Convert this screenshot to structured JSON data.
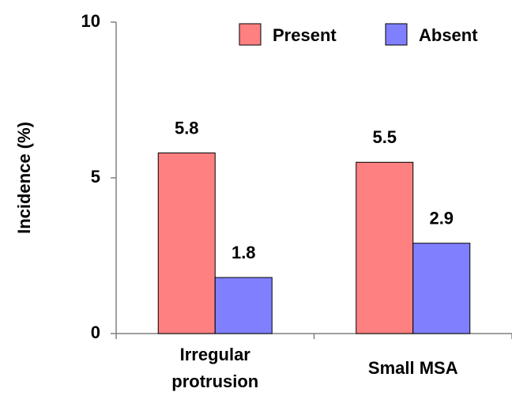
{
  "chart_data": {
    "type": "bar",
    "categories": [
      "Irregular protrusion",
      "Small MSA"
    ],
    "series": [
      {
        "name": "Present",
        "color": "#ff8080",
        "values": [
          5.8,
          5.5
        ]
      },
      {
        "name": "Absent",
        "color": "#8080ff",
        "values": [
          1.8,
          2.9
        ]
      }
    ],
    "y_label": "Incidence (%)",
    "ylim": [
      0,
      10
    ],
    "yticks": [
      0,
      5,
      10
    ],
    "legend": "top-right"
  }
}
